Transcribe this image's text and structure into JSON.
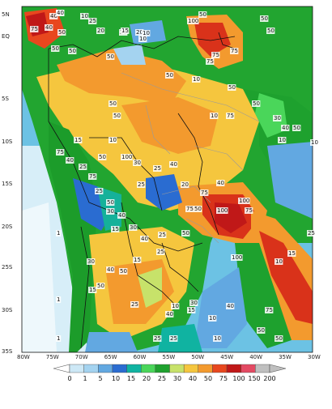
{
  "map": {
    "lat_labels": [
      "5N",
      "EQ",
      "5S",
      "10S",
      "15S",
      "20S",
      "25S",
      "30S",
      "35S"
    ],
    "lon_labels": [
      "80W",
      "75W",
      "70W",
      "65W",
      "60W",
      "55W",
      "50W",
      "45W",
      "40W",
      "35W",
      "30W"
    ],
    "contour_labels": [
      "15",
      "40",
      "10",
      "25",
      "20",
      "25",
      "50",
      "15",
      "20",
      "10",
      "100",
      "50",
      "75",
      "50",
      "50",
      "40",
      "75",
      "50",
      "50",
      "50",
      "50",
      "50",
      "75",
      "50",
      "10",
      "10",
      "75",
      "50",
      "30",
      "50",
      "40",
      "50",
      "10",
      "75",
      "10",
      "10",
      "15",
      "10",
      "100",
      "75",
      "40",
      "25",
      "50",
      "75",
      "30",
      "25",
      "40",
      "40",
      "50",
      "100",
      "75",
      "100",
      "75",
      "50",
      "25",
      "50",
      "25",
      "40",
      "15",
      "30",
      "40",
      "75",
      "100",
      "10",
      "15",
      "25",
      "40",
      "50",
      "75",
      "20",
      "25",
      "15",
      "40",
      "50",
      "50",
      "25",
      "30",
      "1",
      "1",
      "1",
      "10",
      "15",
      "30",
      "25",
      "40",
      "30",
      "15",
      "10",
      "25",
      "50",
      "10",
      "25",
      "40"
    ]
  },
  "legend": {
    "ticks": [
      "0",
      "1",
      "5",
      "10",
      "15",
      "20",
      "25",
      "30",
      "40",
      "50",
      "75",
      "100",
      "150",
      "200"
    ],
    "colors": [
      "#ffffff",
      "#cde8f6",
      "#a4d3f0",
      "#62a8e1",
      "#2a6cd1",
      "#10b3a1",
      "#4ad65a",
      "#1ea12e",
      "#c7e26a",
      "#f5c63e",
      "#f39a2e",
      "#e8471e",
      "#c01818",
      "#e34a63",
      "#bfbfbf"
    ]
  },
  "palette": {
    "sea": "#7fc6e6",
    "green_dark": "#1c9c2a",
    "green_light": "#4ad65a",
    "yellow": "#f5c63e",
    "orange": "#f39a2e",
    "red": "#d9321a",
    "teal": "#15b19a",
    "blue": "#2d78d6"
  }
}
